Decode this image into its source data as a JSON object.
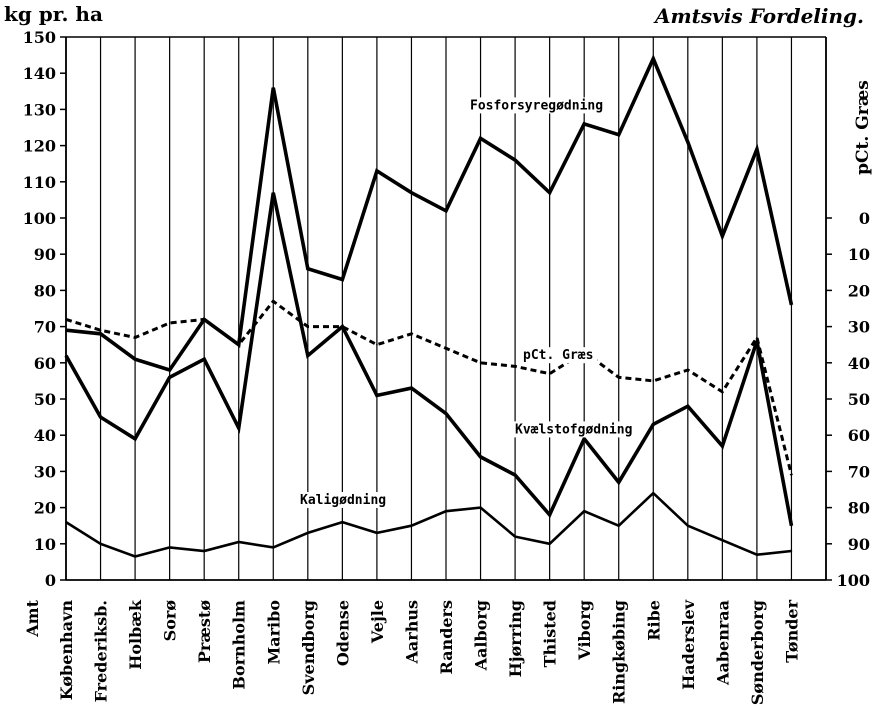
{
  "header": {
    "y_left_label": "kg pr. ha",
    "title": "Amtsvis Fordeling.",
    "y_right_label": "pCt. Græs"
  },
  "chart_data": {
    "type": "line",
    "title": "Amtsvis Fordeling.",
    "ylabel": "kg pr. ha",
    "ylim": [
      0,
      150
    ],
    "y_ticks": [
      0,
      10,
      20,
      30,
      40,
      50,
      60,
      70,
      80,
      90,
      100,
      110,
      120,
      130,
      140,
      150
    ],
    "y2label": "pCt. Græs",
    "y2_ticks": [
      0,
      10,
      20,
      30,
      40,
      50,
      60,
      70,
      80,
      90,
      100
    ],
    "y2_inverted": true,
    "x_axis_header": "Amt",
    "grid": "vertical",
    "categories": [
      "København",
      "Frederiksb.",
      "Holbæk",
      "Sorø",
      "Præstø",
      "Bornholm",
      "Maribo",
      "Svendborg",
      "Odense",
      "Vejle",
      "Aarhus",
      "Randers",
      "Aalborg",
      "Hjørring",
      "Thisted",
      "Viborg",
      "Ringkøbing",
      "Ribe",
      "Haderslev",
      "Aabenraa",
      "Sønderborg",
      "Tønder"
    ],
    "series": [
      {
        "name": "Fosforsyregødning",
        "axis": "left",
        "style": "solid-thick",
        "values": [
          69,
          68,
          61,
          58,
          72,
          65,
          136,
          86,
          83,
          113,
          107,
          102,
          122,
          116,
          107,
          126,
          123,
          144,
          121,
          95,
          119,
          76
        ]
      },
      {
        "name": "Kvælstofgødning",
        "axis": "left",
        "style": "solid-thick",
        "values": [
          62,
          45,
          39,
          56,
          61,
          42,
          107,
          62,
          70,
          51,
          53,
          46,
          34,
          29,
          18,
          39,
          27,
          43,
          48,
          37,
          66,
          15
        ]
      },
      {
        "name": "Kaligødning",
        "axis": "left",
        "style": "solid",
        "values": [
          16,
          10,
          6.5,
          9,
          8,
          10.5,
          9,
          13,
          16,
          13,
          15,
          19,
          20,
          12,
          10,
          19,
          15,
          24,
          15,
          11,
          7,
          8
        ]
      },
      {
        "name": "pCt. Græs",
        "axis": "right",
        "style": "dashed",
        "values": [
          28,
          31,
          33,
          29,
          28,
          35,
          23,
          30,
          30,
          35,
          32,
          36,
          40,
          41,
          43,
          37,
          44,
          45,
          42,
          48,
          33,
          71
        ]
      }
    ]
  }
}
